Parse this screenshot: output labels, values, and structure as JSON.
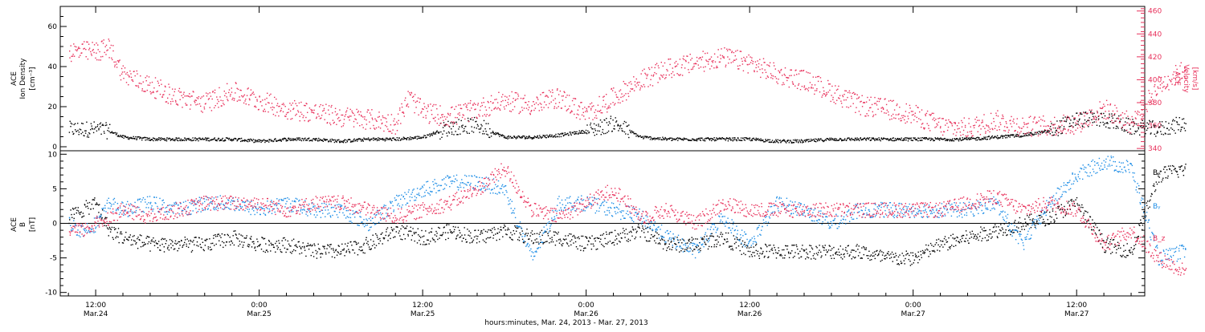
{
  "chart_data": [
    {
      "type": "scatter",
      "panel": "top",
      "ylabel_left": [
        "ACE",
        "Ion Density",
        "[cm⁻³]"
      ],
      "ylabel_right": [
        "ACE",
        "Velocity",
        "[km/s]"
      ],
      "ylim_left": [
        -2,
        70
      ],
      "ylim_right": [
        338,
        464
      ],
      "yticks_left": [
        0,
        20,
        40,
        60
      ],
      "yticks_right": [
        340,
        360,
        380,
        400,
        420,
        440,
        460
      ],
      "series": [
        {
          "axis": "left",
          "color": "#000000",
          "x": [
            0,
            1,
            2,
            3,
            4,
            6,
            8,
            10,
            12,
            14,
            16,
            18,
            20,
            22,
            24,
            26,
            28,
            30,
            32,
            34,
            36,
            38,
            40,
            42,
            44,
            46,
            48,
            50,
            52,
            54,
            56,
            58,
            60,
            62,
            64,
            66,
            68,
            70,
            72,
            74,
            76,
            78,
            80,
            82
          ],
          "y": [
            9,
            9,
            9,
            8,
            5,
            4,
            4,
            4,
            4,
            3,
            4,
            4,
            3,
            4,
            4,
            5,
            10,
            11,
            5,
            5,
            6,
            8,
            12,
            5,
            4,
            4,
            4,
            4,
            3,
            3,
            4,
            4,
            4,
            4,
            4,
            4,
            5,
            6,
            8,
            14,
            14,
            10,
            9,
            12
          ]
        },
        {
          "axis": "right",
          "color": "#e8315b",
          "x": [
            0,
            2,
            3,
            4,
            6,
            8,
            10,
            12,
            14,
            16,
            18,
            20,
            22,
            24,
            25,
            26,
            28,
            30,
            32,
            34,
            36,
            38,
            40,
            42,
            44,
            46,
            48,
            50,
            52,
            54,
            56,
            58,
            60,
            62,
            64,
            66,
            68,
            70,
            72,
            74,
            76,
            78,
            80,
            82
          ],
          "y": [
            425,
            425,
            428,
            405,
            395,
            385,
            380,
            390,
            382,
            375,
            372,
            368,
            366,
            362,
            385,
            372,
            368,
            375,
            382,
            378,
            385,
            370,
            385,
            400,
            410,
            415,
            420,
            415,
            405,
            400,
            390,
            378,
            375,
            370,
            360,
            358,
            365,
            360,
            360,
            362,
            375,
            362,
            395,
            410
          ]
        }
      ]
    },
    {
      "type": "scatter",
      "panel": "bottom",
      "ylabel_left": [
        "ACE",
        "B",
        "[nT]"
      ],
      "ylim": [
        -10.5,
        10.5
      ],
      "yticks": [
        -10,
        -5,
        0,
        5,
        10
      ],
      "legend": [
        {
          "label": "Bₓ",
          "color": "#000000"
        },
        {
          "label": "Bᵧ",
          "color": "#1f8ee6"
        },
        {
          "label": "B_z",
          "color": "#e8315b"
        }
      ],
      "series": [
        {
          "name": "Bₓ",
          "color": "#000000",
          "x": [
            0,
            1,
            2,
            3,
            4,
            6,
            8,
            10,
            12,
            14,
            16,
            18,
            20,
            22,
            24,
            26,
            28,
            30,
            32,
            34,
            36,
            38,
            40,
            42,
            44,
            46,
            48,
            50,
            52,
            54,
            56,
            58,
            60,
            62,
            64,
            66,
            68,
            70,
            72,
            74,
            76,
            78,
            80,
            82
          ],
          "y": [
            1,
            2,
            3,
            -1,
            -2,
            -3,
            -3,
            -3,
            -2,
            -3,
            -3,
            -4,
            -4,
            -3,
            -1,
            -2,
            -1,
            -2,
            -1,
            -2,
            -2,
            -3,
            -2,
            -1,
            -3,
            -3,
            -2,
            -4,
            -4,
            -4,
            -4,
            -4,
            -5,
            -5,
            -3,
            -2,
            -1,
            0,
            1,
            3,
            -3,
            -4,
            7,
            8
          ]
        },
        {
          "name": "Bᵧ",
          "color": "#1f8ee6",
          "x": [
            0,
            1,
            2,
            3,
            4,
            6,
            8,
            10,
            12,
            14,
            16,
            18,
            20,
            22,
            24,
            26,
            28,
            30,
            32,
            34,
            36,
            38,
            40,
            42,
            44,
            46,
            48,
            50,
            52,
            54,
            56,
            58,
            60,
            62,
            64,
            66,
            68,
            70,
            72,
            74,
            76,
            78,
            80,
            82
          ],
          "y": [
            0,
            -1,
            0,
            3,
            2,
            3,
            2,
            3,
            3,
            2,
            3,
            2,
            2,
            0,
            3,
            5,
            6,
            6,
            5,
            -5,
            3,
            3,
            2,
            1,
            -2,
            -4,
            1,
            -3,
            3,
            2,
            0,
            2,
            2,
            2,
            2,
            2,
            3,
            -3,
            3,
            7,
            9,
            8,
            -5,
            -4
          ]
        },
        {
          "name": "B_z",
          "color": "#e8315b",
          "x": [
            0,
            1,
            2,
            3,
            4,
            6,
            8,
            10,
            12,
            14,
            16,
            18,
            20,
            22,
            24,
            26,
            28,
            30,
            32,
            34,
            36,
            38,
            40,
            42,
            44,
            46,
            48,
            50,
            52,
            54,
            56,
            58,
            60,
            62,
            64,
            66,
            68,
            70,
            72,
            74,
            76,
            78,
            80,
            82
          ],
          "y": [
            -1,
            -1,
            0,
            1,
            2,
            1,
            2,
            3,
            3,
            3,
            2,
            3,
            3,
            2,
            1,
            2,
            3,
            5,
            8,
            2,
            1,
            3,
            5,
            1,
            2,
            0,
            3,
            2,
            2,
            2,
            2,
            2,
            2,
            2,
            2,
            3,
            4,
            2,
            3,
            2,
            -3,
            -1,
            -5,
            -7
          ]
        }
      ]
    }
  ],
  "x_axis": {
    "ticks": [
      {
        "hours": 0,
        "time": "12:00",
        "date": "Mar.24"
      },
      {
        "hours": 12,
        "time": "0:00",
        "date": "Mar.25"
      },
      {
        "hours": 24,
        "time": "12:00",
        "date": "Mar.25"
      },
      {
        "hours": 36,
        "time": "0:00",
        "date": "Mar.26"
      },
      {
        "hours": 48,
        "time": "12:00",
        "date": "Mar.26"
      },
      {
        "hours": 60,
        "time": "0:00",
        "date": "Mar.27"
      },
      {
        "hours": 72,
        "time": "12:00",
        "date": "Mar.27"
      }
    ],
    "xlim_hours": [
      -2.6,
      77
    ],
    "xlabel": "hours:minutes, Mar. 24, 2013 - Mar. 27, 2013"
  },
  "colors": {
    "density": "#000000",
    "velocity": "#e8315b",
    "bx": "#000000",
    "by": "#1f8ee6",
    "bz": "#e8315b"
  }
}
